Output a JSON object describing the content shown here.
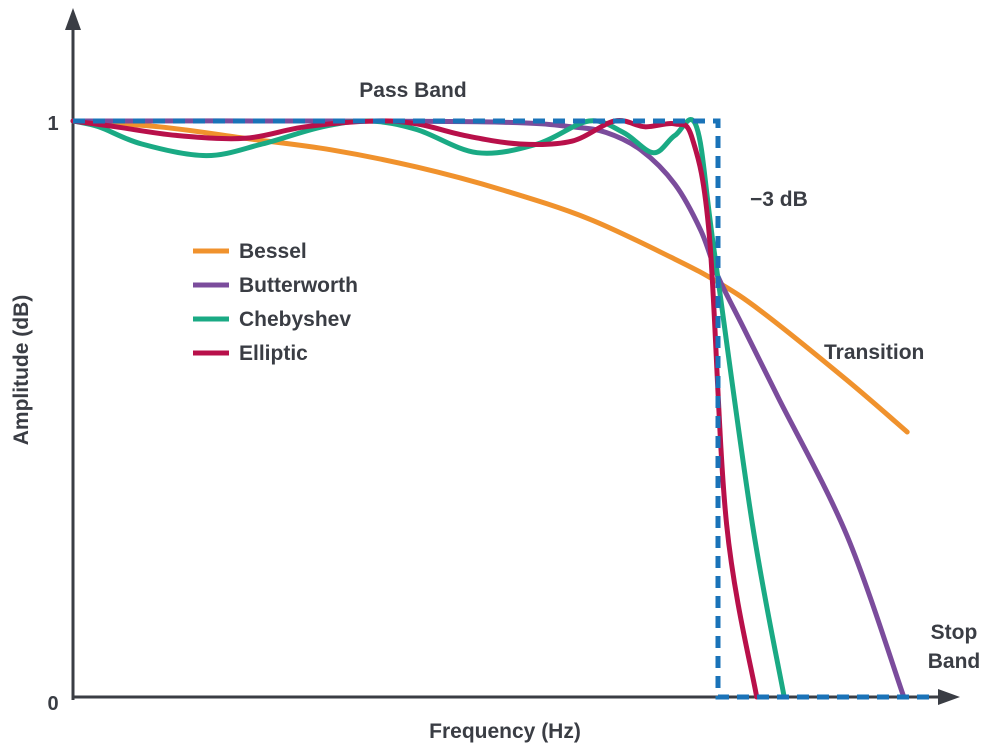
{
  "chart_data": {
    "type": "line",
    "title": "",
    "xlabel": "Frequency (Hz)",
    "ylabel": "Amplitude (dB)",
    "xlim": [
      0,
      1
    ],
    "ylim": [
      0,
      1
    ],
    "yticks": [
      {
        "value": 0,
        "label": "0"
      },
      {
        "value": 1,
        "label": "1"
      }
    ],
    "grid": false,
    "legend_position": "center-left",
    "annotations": {
      "pass_band": "Pass Band",
      "minus3db": "−3 dB",
      "transition": "Transition",
      "stop_band_line1": "Stop",
      "stop_band_line2": "Band"
    },
    "ideal": {
      "name": "",
      "color": "#1a73b8",
      "x": [
        0,
        0.75,
        0.75,
        1.0
      ],
      "y": [
        1,
        1,
        0,
        0
      ]
    },
    "series": [
      {
        "name": "Bessel",
        "color": "#f0922d",
        "x": [
          0,
          0.1,
          0.2,
          0.3,
          0.4,
          0.5,
          0.6,
          0.7,
          0.75,
          0.8,
          0.9,
          0.97
        ],
        "y": [
          1.0,
          0.99,
          0.97,
          0.95,
          0.92,
          0.88,
          0.83,
          0.76,
          0.72,
          0.67,
          0.55,
          0.46
        ]
      },
      {
        "name": "Butterworth",
        "color": "#7b4c9c",
        "x": [
          0,
          0.3,
          0.5,
          0.58,
          0.62,
          0.66,
          0.7,
          0.73,
          0.75,
          0.78,
          0.82,
          0.9,
          0.966
        ],
        "y": [
          1.0,
          1.0,
          0.998,
          0.99,
          0.98,
          0.95,
          0.89,
          0.81,
          0.73,
          0.64,
          0.52,
          0.28,
          0.0
        ]
      },
      {
        "name": "Chebyshev",
        "color": "#1aaa84",
        "x": [
          0,
          0.03,
          0.08,
          0.155,
          0.22,
          0.29,
          0.345,
          0.4,
          0.47,
          0.54,
          0.6,
          0.64,
          0.675,
          0.7,
          0.725,
          0.745,
          0.79,
          0.827
        ],
        "y": [
          1.0,
          0.99,
          0.96,
          0.94,
          0.96,
          0.99,
          1.0,
          0.985,
          0.945,
          0.96,
          1.0,
          0.98,
          0.945,
          0.975,
          0.99,
          0.78,
          0.3,
          0.0
        ]
      },
      {
        "name": "Elliptic",
        "color": "#b8104a",
        "x": [
          0,
          0.05,
          0.12,
          0.2,
          0.27,
          0.35,
          0.4,
          0.455,
          0.52,
          0.58,
          0.63,
          0.665,
          0.7,
          0.72,
          0.74,
          0.76,
          0.795
        ],
        "y": [
          1.0,
          0.99,
          0.975,
          0.97,
          0.99,
          1.0,
          0.995,
          0.975,
          0.96,
          0.965,
          1.0,
          0.99,
          0.995,
          0.97,
          0.8,
          0.3,
          0.0
        ]
      }
    ]
  }
}
